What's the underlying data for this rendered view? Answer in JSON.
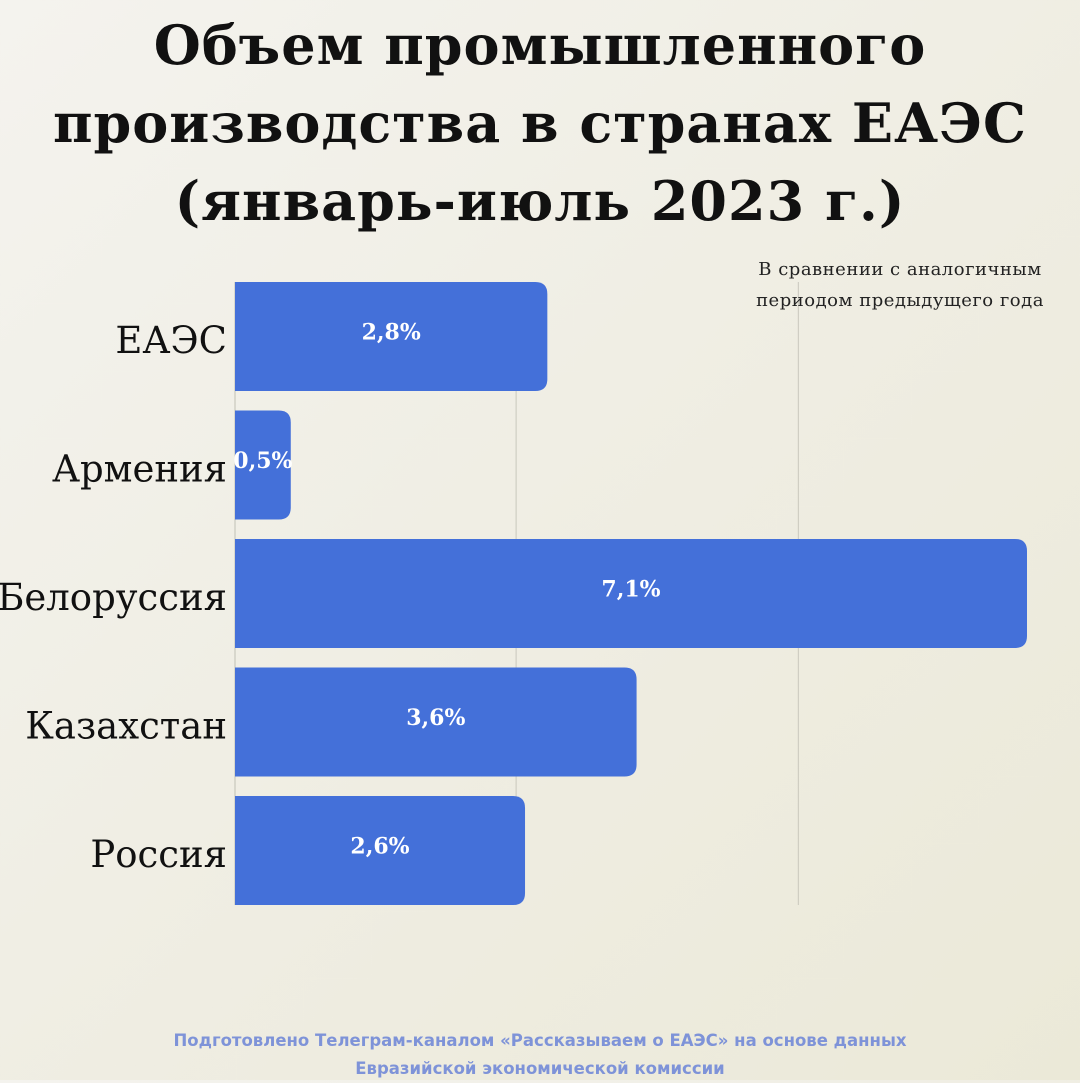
{
  "title_lines": [
    "Объем промышленного",
    "производства в странах ЕАЭС",
    "(январь-июль 2023 г.)"
  ],
  "note_lines": [
    "В сравнении с аналогичным",
    "периодом предыдущего года"
  ],
  "footer_lines": [
    "Подготовлено Телеграм-каналом «Рассказываем о ЕАЭС» на основе данных",
    "Евразийской экономической комиссии"
  ],
  "chart_data": {
    "type": "bar",
    "orientation": "horizontal",
    "categories": [
      "ЕАЭС",
      "Армения",
      "Белоруссия",
      "Казахстан",
      "Россия"
    ],
    "values": [
      2.8,
      0.5,
      7.1,
      3.6,
      2.6
    ],
    "value_labels": [
      "2,8%",
      "0,5%",
      "7,1%",
      "3,6%",
      "2,6%"
    ],
    "xlim": [
      0,
      7.1
    ],
    "grid": true,
    "bar_color": "#4470d9",
    "grid_color": "#c9c8bd"
  }
}
